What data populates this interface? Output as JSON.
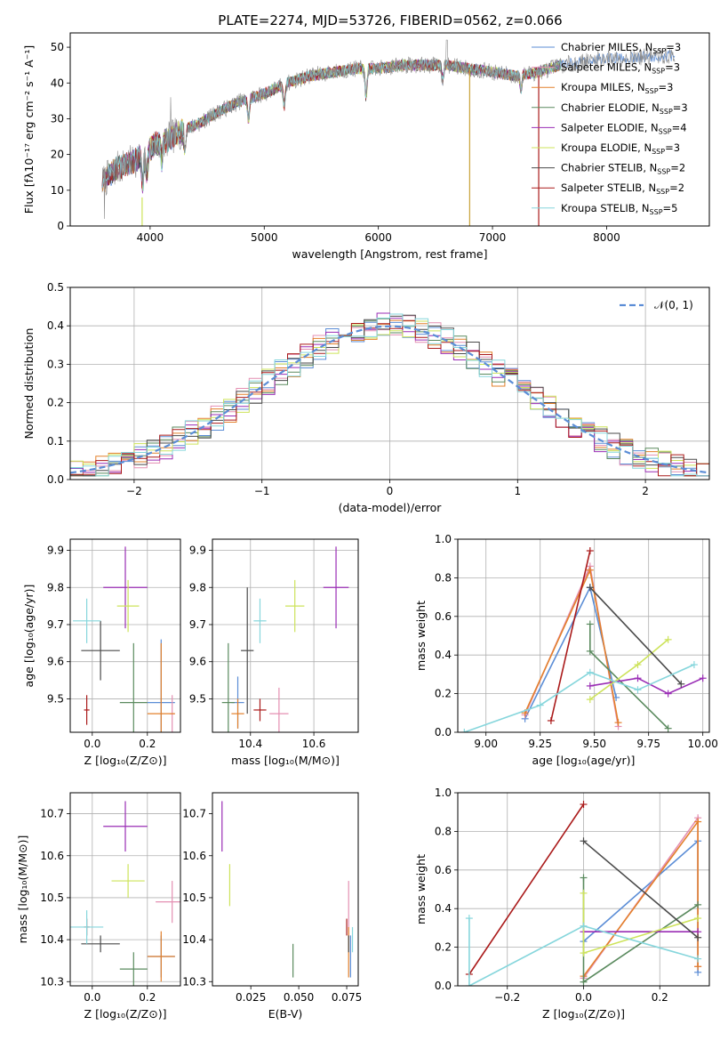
{
  "figure": {
    "title": "PLATE=2274, MJD=53726, FIBERID=0562, z=0.066"
  },
  "models": [
    {
      "key": "chabrier_miles",
      "label": "Chabrier MILES, N",
      "sub": "SSP",
      "tail": "=3",
      "color": "#5b8dd6"
    },
    {
      "key": "salpeter_miles",
      "label": "Salpeter MILES, N",
      "sub": "SSP",
      "tail": "=3",
      "color": "#e48fb2"
    },
    {
      "key": "kroupa_miles",
      "label": "Kroupa MILES, N",
      "sub": "SSP",
      "tail": "=3",
      "color": "#e3802b"
    },
    {
      "key": "chabrier_elodie",
      "label": "Chabrier ELODIE, N",
      "sub": "SSP",
      "tail": "=3",
      "color": "#5a8a5e"
    },
    {
      "key": "salpeter_elodie",
      "label": "Salpeter ELODIE, N",
      "sub": "SSP",
      "tail": "=4",
      "color": "#9a2db5"
    },
    {
      "key": "kroupa_elodie",
      "label": "Kroupa ELODIE, N",
      "sub": "SSP",
      "tail": "=3",
      "color": "#cde35a"
    },
    {
      "key": "chabrier_stelib",
      "label": "Chabrier STELIB, N",
      "sub": "SSP",
      "tail": "=2",
      "color": "#4a4a4a"
    },
    {
      "key": "salpeter_stelib",
      "label": "Salpeter STELIB, N",
      "sub": "SSP",
      "tail": "=2",
      "color": "#aa1a1a"
    },
    {
      "key": "kroupa_stelib",
      "label": "Kroupa STELIB, N",
      "sub": "SSP",
      "tail": "=5",
      "color": "#86d6dc"
    }
  ],
  "chart_data": [
    {
      "id": "spectrum",
      "type": "line",
      "title": "PLATE=2274, MJD=53726, FIBERID=0562, z=0.066",
      "xlabel": "wavelength [Angstrom, rest frame]",
      "ylabel": "Flux [fλ10⁻¹⁷ erg cm⁻² s⁻¹ A⁻¹]",
      "xlim": [
        3300,
        8900
      ],
      "ylim": [
        0,
        54
      ],
      "xticks": [
        4000,
        5000,
        6000,
        7000,
        8000
      ],
      "yticks": [
        0,
        10,
        20,
        30,
        40,
        50
      ],
      "grid": false,
      "legend": "right",
      "continuum": [
        [
          3580,
          12
        ],
        [
          3700,
          16
        ],
        [
          3850,
          18
        ],
        [
          3950,
          20
        ],
        [
          4050,
          23
        ],
        [
          4150,
          24
        ],
        [
          4300,
          27
        ],
        [
          4450,
          29
        ],
        [
          4600,
          32
        ],
        [
          4800,
          35
        ],
        [
          5000,
          37
        ],
        [
          5200,
          40
        ],
        [
          5400,
          42
        ],
        [
          5600,
          43
        ],
        [
          5800,
          44
        ],
        [
          6000,
          44
        ],
        [
          6200,
          45
        ],
        [
          6400,
          45
        ],
        [
          6600,
          45
        ],
        [
          6800,
          44
        ],
        [
          7000,
          43
        ],
        [
          7200,
          42
        ],
        [
          7400,
          43
        ],
        [
          7600,
          45
        ],
        [
          7800,
          46
        ],
        [
          8000,
          47
        ],
        [
          8200,
          47
        ],
        [
          8400,
          47.5
        ],
        [
          8600,
          47.5
        ]
      ],
      "series_spans": [
        [
          3580,
          8600
        ],
        [
          3580,
          7600
        ],
        [
          3580,
          7600
        ],
        [
          3580,
          7600
        ],
        [
          3580,
          7600
        ],
        [
          3930,
          7600
        ],
        [
          3580,
          7600
        ],
        [
          3580,
          7400
        ],
        [
          3580,
          7600
        ]
      ],
      "dips": [
        [
          3935,
          -8
        ],
        [
          3970,
          -6
        ],
        [
          4102,
          -5
        ],
        [
          4305,
          -6
        ],
        [
          4862,
          -6
        ],
        [
          5175,
          -6
        ],
        [
          5892,
          -8
        ],
        [
          6563,
          -4
        ],
        [
          7250,
          -4
        ]
      ]
    },
    {
      "id": "residuals",
      "type": "histogram",
      "xlabel": "(data-model)/error",
      "ylabel": "Normed distribution",
      "xlim": [
        -2.5,
        2.5
      ],
      "ylim": [
        0,
        0.5
      ],
      "xticks": [
        -2,
        -1,
        0,
        1,
        2
      ],
      "yticks": [
        0.0,
        0.1,
        0.2,
        0.3,
        0.4,
        0.5
      ],
      "grid": true,
      "legend": "top-right",
      "reference": {
        "name": "𝒩(0, 1)",
        "mean": 0,
        "sigma": 1,
        "color": "#5b8dd6"
      },
      "bin_width": 0.1
    },
    {
      "id": "age_vs_Z",
      "type": "errorbar",
      "xlabel": "Z [log₁₀(Z/Z⊙)]",
      "ylabel": "age  [log₁₀(age/yr)]",
      "xlim": [
        -0.08,
        0.32
      ],
      "ylim": [
        9.41,
        9.93
      ],
      "xticks": [
        0.0,
        0.2
      ],
      "yticks": [
        9.5,
        9.6,
        9.7,
        9.8,
        9.9
      ],
      "grid": true,
      "points": [
        {
          "model": "chabrier_miles",
          "x": 0.25,
          "xerr": 0.05,
          "y": 9.49,
          "yerr": 0.17
        },
        {
          "model": "salpeter_miles",
          "x": 0.29,
          "xerr": 0.01,
          "y": 9.46,
          "yerr": 0.05
        },
        {
          "model": "kroupa_miles",
          "x": 0.25,
          "xerr": 0.05,
          "y": 9.46,
          "yerr": 0.19
        },
        {
          "model": "chabrier_elodie",
          "x": 0.15,
          "xerr": 0.05,
          "y": 9.49,
          "yerr": 0.16
        },
        {
          "model": "salpeter_elodie",
          "x": 0.12,
          "xerr": 0.08,
          "y": 9.8,
          "yerr": 0.11
        },
        {
          "model": "kroupa_elodie",
          "x": 0.13,
          "xerr": 0.04,
          "y": 9.75,
          "yerr": 0.07
        },
        {
          "model": "chabrier_stelib",
          "x": 0.03,
          "xerr": 0.07,
          "y": 9.63,
          "yerr": 0.08
        },
        {
          "model": "salpeter_stelib",
          "x": -0.02,
          "xerr": 0.01,
          "y": 9.47,
          "yerr": 0.04
        },
        {
          "model": "kroupa_stelib",
          "x": -0.02,
          "xerr": 0.05,
          "y": 9.71,
          "yerr": 0.06
        }
      ]
    },
    {
      "id": "age_vs_mass",
      "type": "errorbar",
      "xlabel": "mass [log₁₀(M/M⊙)]",
      "ylabel": "",
      "xlim": [
        10.28,
        10.74
      ],
      "ylim": [
        9.41,
        9.93
      ],
      "xticks": [
        10.4,
        10.6
      ],
      "yticks": [
        9.5,
        9.6,
        9.7,
        9.8,
        9.9
      ],
      "grid": true,
      "points": [
        {
          "model": "chabrier_miles",
          "x": 10.36,
          "xerr": 0.02,
          "y": 9.49,
          "yerr": 0.07
        },
        {
          "model": "salpeter_miles",
          "x": 10.49,
          "xerr": 0.03,
          "y": 9.46,
          "yerr": 0.07
        },
        {
          "model": "kroupa_miles",
          "x": 10.36,
          "xerr": 0.02,
          "y": 9.46,
          "yerr": 0.04
        },
        {
          "model": "chabrier_elodie",
          "x": 10.33,
          "xerr": 0.02,
          "y": 9.49,
          "yerr": 0.16
        },
        {
          "model": "salpeter_elodie",
          "x": 10.67,
          "xerr": 0.04,
          "y": 9.8,
          "yerr": 0.11
        },
        {
          "model": "kroupa_elodie",
          "x": 10.54,
          "xerr": 0.03,
          "y": 9.75,
          "yerr": 0.07
        },
        {
          "model": "chabrier_stelib",
          "x": 10.39,
          "xerr": 0.02,
          "y": 9.63,
          "yerr": 0.17
        },
        {
          "model": "salpeter_stelib",
          "x": 10.43,
          "xerr": 0.02,
          "y": 9.47,
          "yerr": 0.03
        },
        {
          "model": "kroupa_stelib",
          "x": 10.43,
          "xerr": 0.02,
          "y": 9.71,
          "yerr": 0.06
        }
      ]
    },
    {
      "id": "weight_vs_age",
      "type": "line",
      "xlabel": "age  [log₁₀(age/yr)]",
      "ylabel": "mass weight",
      "xlim": [
        8.87,
        10.03
      ],
      "ylim": [
        0,
        1
      ],
      "xticks": [
        9.0,
        9.25,
        9.5,
        9.75,
        10.0
      ],
      "yticks": [
        0.0,
        0.2,
        0.4,
        0.6,
        0.8,
        1.0
      ],
      "grid": true,
      "series": [
        {
          "model": "chabrier_miles",
          "points": [
            [
              9.18,
              0.07
            ],
            [
              9.48,
              0.75
            ],
            [
              9.6,
              0.18
            ]
          ]
        },
        {
          "model": "salpeter_miles",
          "points": [
            [
              9.18,
              0.09
            ],
            [
              9.48,
              0.86
            ],
            [
              9.61,
              0.03
            ]
          ]
        },
        {
          "model": "kroupa_miles",
          "points": [
            [
              9.18,
              0.1
            ],
            [
              9.48,
              0.84
            ],
            [
              9.61,
              0.05
            ]
          ]
        },
        {
          "model": "chabrier_elodie",
          "points": [
            [
              9.48,
              0.56
            ],
            [
              9.48,
              0.42
            ],
            [
              9.84,
              0.02
            ]
          ]
        },
        {
          "model": "salpeter_elodie",
          "points": [
            [
              9.48,
              0.24
            ],
            [
              9.7,
              0.28
            ],
            [
              9.84,
              0.2
            ],
            [
              10.0,
              0.28
            ]
          ]
        },
        {
          "model": "kroupa_elodie",
          "points": [
            [
              9.48,
              0.17
            ],
            [
              9.7,
              0.35
            ],
            [
              9.84,
              0.48
            ]
          ]
        },
        {
          "model": "chabrier_stelib",
          "points": [
            [
              9.48,
              0.75
            ],
            [
              9.9,
              0.25
            ]
          ]
        },
        {
          "model": "salpeter_stelib",
          "points": [
            [
              9.3,
              0.06
            ],
            [
              9.48,
              0.94
            ]
          ]
        },
        {
          "model": "kroupa_stelib",
          "points": [
            [
              8.9,
              0.0
            ],
            [
              9.25,
              0.14
            ],
            [
              9.48,
              0.31
            ],
            [
              9.7,
              0.22
            ],
            [
              9.96,
              0.35
            ]
          ]
        }
      ]
    },
    {
      "id": "mass_vs_Z",
      "type": "errorbar",
      "xlabel": "Z [log₁₀(Z/Z⊙)]",
      "ylabel": "mass [log₁₀(M/M⊙)]",
      "xlim": [
        -0.08,
        0.32
      ],
      "ylim": [
        10.29,
        10.75
      ],
      "xticks": [
        0.0,
        0.2
      ],
      "yticks": [
        10.3,
        10.4,
        10.5,
        10.6,
        10.7
      ],
      "grid": true,
      "points": [
        {
          "model": "chabrier_miles",
          "x": 0.25,
          "xerr": 0.05,
          "y": 10.36,
          "yerr": 0.05
        },
        {
          "model": "salpeter_miles",
          "x": 0.29,
          "xerr": 0.06,
          "y": 10.49,
          "yerr": 0.05
        },
        {
          "model": "kroupa_miles",
          "x": 0.25,
          "xerr": 0.05,
          "y": 10.36,
          "yerr": 0.06
        },
        {
          "model": "chabrier_elodie",
          "x": 0.15,
          "xerr": 0.05,
          "y": 10.33,
          "yerr": 0.04
        },
        {
          "model": "salpeter_elodie",
          "x": 0.12,
          "xerr": 0.08,
          "y": 10.67,
          "yerr": 0.06
        },
        {
          "model": "kroupa_elodie",
          "x": 0.13,
          "xerr": 0.06,
          "y": 10.54,
          "yerr": 0.04
        },
        {
          "model": "chabrier_stelib",
          "x": 0.03,
          "xerr": 0.07,
          "y": 10.39,
          "yerr": 0.02
        },
        {
          "model": "salpeter_stelib",
          "x": -0.02,
          "xerr": 0.01,
          "y": 10.43,
          "yerr": 0.02
        },
        {
          "model": "kroupa_stelib",
          "x": -0.02,
          "xerr": 0.06,
          "y": 10.43,
          "yerr": 0.04
        }
      ]
    },
    {
      "id": "mass_vs_ebv",
      "type": "errorbar",
      "xlabel": "E(B-V)",
      "ylabel": "",
      "xlim": [
        0.005,
        0.081
      ],
      "ylim": [
        10.29,
        10.75
      ],
      "xticks": [
        0.025,
        0.05,
        0.075
      ],
      "xticklabels": [
        "0.025",
        "0.050",
        "0.075"
      ],
      "yticks": [
        10.3,
        10.4,
        10.5,
        10.6,
        10.7
      ],
      "grid": false,
      "points": [
        {
          "model": "chabrier_miles",
          "x": 0.077,
          "y": 10.36,
          "yerr": 0.05
        },
        {
          "model": "salpeter_miles",
          "x": 0.076,
          "y": 10.47,
          "yerr": 0.07
        },
        {
          "model": "kroupa_miles",
          "x": 0.076,
          "y": 10.37,
          "yerr": 0.06
        },
        {
          "model": "chabrier_elodie",
          "x": 0.047,
          "y": 10.35,
          "yerr": 0.04
        },
        {
          "model": "salpeter_elodie",
          "x": 0.01,
          "y": 10.67,
          "yerr": 0.06
        },
        {
          "model": "kroupa_elodie",
          "x": 0.014,
          "y": 10.53,
          "yerr": 0.05
        },
        {
          "model": "chabrier_stelib",
          "x": 0.076,
          "y": 10.39,
          "yerr": 0.02
        },
        {
          "model": "salpeter_stelib",
          "x": 0.075,
          "y": 10.43,
          "yerr": 0.02
        },
        {
          "model": "kroupa_stelib",
          "x": 0.078,
          "y": 10.4,
          "yerr": 0.03
        }
      ]
    },
    {
      "id": "weight_vs_Z",
      "type": "line",
      "xlabel": "Z [log₁₀(Z/Z⊙)]",
      "ylabel": "mass weight",
      "xlim": [
        -0.33,
        0.33
      ],
      "ylim": [
        0,
        1
      ],
      "xticks": [
        -0.2,
        0.0,
        0.2
      ],
      "yticks": [
        0.0,
        0.2,
        0.4,
        0.6,
        0.8,
        1.0
      ],
      "grid": true,
      "series": [
        {
          "model": "chabrier_miles",
          "points": [
            [
              0.0,
              0.23
            ],
            [
              0.3,
              0.75
            ],
            [
              0.3,
              0.07
            ]
          ]
        },
        {
          "model": "salpeter_miles",
          "points": [
            [
              0.0,
              0.04
            ],
            [
              0.3,
              0.87
            ],
            [
              0.3,
              0.1
            ]
          ]
        },
        {
          "model": "kroupa_miles",
          "points": [
            [
              0.0,
              0.05
            ],
            [
              0.3,
              0.85
            ],
            [
              0.3,
              0.1
            ]
          ]
        },
        {
          "model": "chabrier_elodie",
          "points": [
            [
              0.0,
              0.56
            ],
            [
              0.0,
              0.02
            ],
            [
              0.3,
              0.42
            ]
          ]
        },
        {
          "model": "salpeter_elodie",
          "points": [
            [
              0.0,
              0.28
            ],
            [
              0.3,
              0.28
            ]
          ]
        },
        {
          "model": "kroupa_elodie",
          "points": [
            [
              0.0,
              0.48
            ],
            [
              0.0,
              0.17
            ],
            [
              0.3,
              0.35
            ]
          ]
        },
        {
          "model": "chabrier_stelib",
          "points": [
            [
              0.0,
              0.75
            ],
            [
              0.3,
              0.25
            ]
          ]
        },
        {
          "model": "salpeter_stelib",
          "points": [
            [
              -0.3,
              0.06
            ],
            [
              0.0,
              0.94
            ]
          ]
        },
        {
          "model": "kroupa_stelib",
          "points": [
            [
              -0.3,
              0.35
            ],
            [
              -0.3,
              0.0
            ],
            [
              0.0,
              0.31
            ],
            [
              0.3,
              0.14
            ]
          ]
        }
      ]
    }
  ]
}
